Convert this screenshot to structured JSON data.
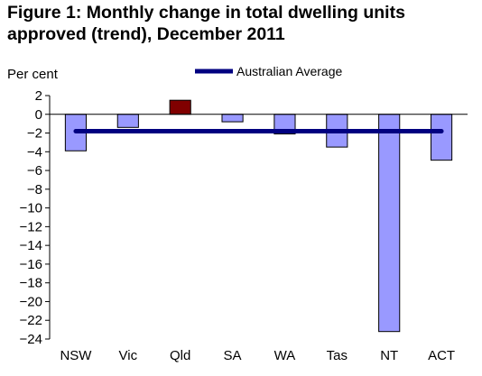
{
  "chart_data": {
    "type": "bar",
    "title": "Figure 1: Monthly change in total dwelling units approved (trend), December 2011",
    "ylabel": "Per cent",
    "xlabel": "",
    "categories": [
      "NSW",
      "Vic",
      "Qld",
      "SA",
      "WA",
      "Tas",
      "NT",
      "ACT"
    ],
    "values": [
      -3.9,
      -1.4,
      1.5,
      -0.8,
      -2.1,
      -3.5,
      -23.2,
      -4.9
    ],
    "ylim": [
      -24,
      2
    ],
    "yticks": [
      2,
      0,
      -2,
      -4,
      -6,
      -8,
      -10,
      -12,
      -14,
      -16,
      -18,
      -20,
      -22,
      -24
    ],
    "average": {
      "name": "Australian Average",
      "value": -1.8
    },
    "legend": {
      "position": "top-center"
    },
    "grid": false,
    "colors": {
      "negative_bar": "#9999ff",
      "positive_bar": "#800000",
      "bar_edge": "#000000",
      "average_line": "#000080"
    }
  }
}
